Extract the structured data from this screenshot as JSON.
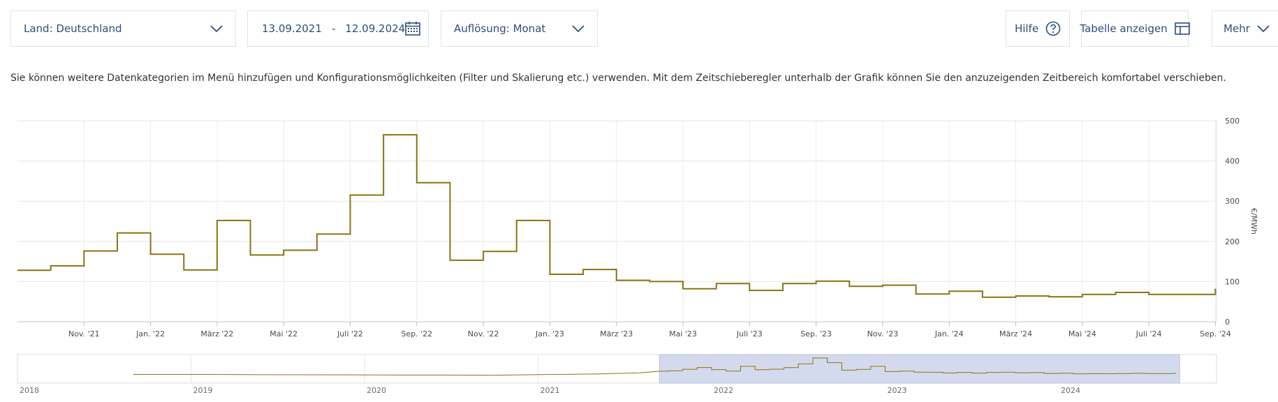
{
  "toolbar": {
    "land_label": "Land: Deutschland",
    "date_from": "13.09.2021",
    "date_sep": "-",
    "date_to": "12.09.2024",
    "resolution_label": "Auflösung: Monat",
    "help_label": "Hilfe",
    "table_label": "Tabelle anzeigen",
    "more_label": "Mehr"
  },
  "info_text": "Sie können weitere Datenkategorien im Menü hinzufügen und Konfigurationsmöglichkeiten (Filter und Skalierung etc.) verwenden. Mit dem Zeitschieberegler unterhalb der Grafik können Sie den anzuzeigenden Zeitbereich komfortabel verschieben.",
  "colors": {
    "series": "#8a7412",
    "accent": "#2c4f78",
    "navigator_selection": "#ccd4ea"
  },
  "chart_data": {
    "type": "line",
    "step": true,
    "x_ticks": [
      "Nov. '21",
      "Jan. '22",
      "März '22",
      "Mai '22",
      "Juli '22",
      "Sep. '22",
      "Nov. '22",
      "Jan. '23",
      "März '23",
      "Mai '23",
      "Juli '23",
      "Sep. '23",
      "Nov. '23",
      "Jan. '24",
      "März '24",
      "Mai '24",
      "Juli '24",
      "Sep. '24"
    ],
    "y_ticks": [
      0,
      100,
      200,
      300,
      400,
      500
    ],
    "ylim": [
      0,
      500
    ],
    "ylabel": "€/MWh",
    "series": [
      {
        "x": [
          "2021-09-13",
          "2021-10",
          "2021-11",
          "2021-12",
          "2022-01",
          "2022-02",
          "2022-03",
          "2022-04",
          "2022-05",
          "2022-06",
          "2022-07",
          "2022-08",
          "2022-09",
          "2022-10",
          "2022-11",
          "2022-12",
          "2023-01",
          "2023-02",
          "2023-03",
          "2023-04",
          "2023-05",
          "2023-06",
          "2023-07",
          "2023-08",
          "2023-09",
          "2023-10",
          "2023-11",
          "2023-12",
          "2024-01",
          "2024-02",
          "2024-03",
          "2024-04",
          "2024-05",
          "2024-06",
          "2024-07",
          "2024-08",
          "2024-09"
        ],
        "values": [
          128,
          139,
          176,
          221,
          168,
          129,
          252,
          166,
          178,
          218,
          315,
          465,
          346,
          153,
          175,
          252,
          118,
          130,
          103,
          100,
          82,
          95,
          78,
          95,
          101,
          88,
          91,
          69,
          76,
          61,
          64,
          62,
          68,
          73,
          68,
          68,
          80
        ]
      }
    ],
    "navigator": {
      "x_ticks": [
        "2018",
        "2019",
        "2020",
        "2021",
        "2022",
        "2023",
        "2024"
      ],
      "selection": [
        "2021-09-13",
        "2024-09-12"
      ]
    }
  }
}
